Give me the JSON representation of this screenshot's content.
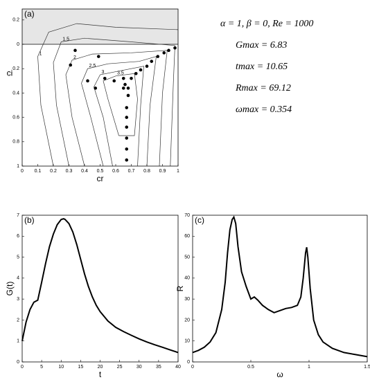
{
  "chart_data": [
    {
      "type": "contour",
      "title": "(a)",
      "xlabel": "cr",
      "ylabel": "ci",
      "xlim": [
        0,
        1
      ],
      "xticks": [
        0,
        0.1,
        0.2,
        0.3,
        0.4,
        0.5,
        0.6,
        0.7,
        0.8,
        0.9,
        1
      ],
      "ylim": [
        -1,
        0.29
      ],
      "yticks": [
        {
          "value": 0.2,
          "label": "0.2"
        },
        0,
        {
          "value": -0.2,
          "label": "0.2"
        },
        {
          "value": -0.4,
          "label": "0.4"
        },
        {
          "value": -0.6,
          "label": "0.6"
        },
        {
          "value": -0.8,
          "label": "0.8"
        },
        {
          "value": -1,
          "label": "1"
        }
      ],
      "x": [
        0.34,
        0.49,
        0.31,
        0.42,
        0.47,
        0.53,
        0.59,
        0.65,
        0.7,
        0.73,
        0.76,
        0.8,
        0.83,
        0.87,
        0.91,
        0.94,
        0.98,
        0.66,
        0.68,
        0.65,
        0.68,
        0.67,
        0.67,
        0.67,
        0.67,
        0.67,
        0.67
      ],
      "y": [
        -0.05,
        -0.1,
        -0.17,
        -0.3,
        -0.36,
        -0.28,
        -0.3,
        -0.28,
        -0.28,
        -0.24,
        -0.21,
        -0.18,
        -0.14,
        -0.1,
        -0.07,
        -0.05,
        -0.03,
        -0.33,
        -0.36,
        -0.36,
        -0.42,
        -0.52,
        -0.6,
        -0.68,
        -0.77,
        -0.86,
        -0.95
      ],
      "color": "#000000",
      "contours": [
        {
          "level": 1,
          "x": [
            0.2,
            0.12,
            0.1,
            0.17,
            0.35,
            0.6,
            1.0
          ],
          "y": [
            -1,
            -0.5,
            -0.1,
            0.1,
            0.17,
            0.14,
            0.12
          ]
        },
        {
          "level": 1.5,
          "x": [
            0.3,
            0.22,
            0.2,
            0.25,
            0.4,
            0.7,
            0.98,
            0.97,
            0.95
          ],
          "y": [
            -1,
            -0.5,
            -0.15,
            0.02,
            0.05,
            0.02,
            -0.01,
            -0.3,
            -1
          ]
        },
        {
          "level": 2,
          "x": [
            0.4,
            0.32,
            0.28,
            0.32,
            0.45,
            0.7,
            0.93,
            0.9,
            0.88
          ],
          "y": [
            -1,
            -0.6,
            -0.25,
            -0.13,
            -0.08,
            -0.07,
            -0.05,
            -0.4,
            -1
          ]
        },
        {
          "level": 2.5,
          "x": [
            0.52,
            0.44,
            0.38,
            0.42,
            0.55,
            0.75,
            0.86,
            0.82,
            0.8
          ],
          "y": [
            -1,
            -0.6,
            -0.32,
            -0.2,
            -0.16,
            -0.14,
            -0.1,
            -0.5,
            -1
          ]
        },
        {
          "level": 3,
          "x": [
            0.58,
            0.52,
            0.46,
            0.5,
            0.62,
            0.78,
            0.76,
            0.74
          ],
          "y": [
            -1,
            -0.6,
            -0.35,
            -0.25,
            -0.22,
            -0.18,
            -0.5,
            -1
          ]
        },
        {
          "level": 3.5,
          "x": [
            0.62,
            0.55,
            0.52,
            0.6,
            0.72,
            0.74,
            0.72,
            0.62
          ],
          "y": [
            -0.75,
            -0.45,
            -0.3,
            -0.26,
            -0.24,
            -0.45,
            -0.75,
            -0.75
          ]
        }
      ],
      "annotations": [
        "α = 1, β = 0, Re = 1000",
        "Gmax = 6.83",
        "tmax = 10.65",
        "Rmax = 69.12",
        "ωmax = 0.354"
      ]
    },
    {
      "type": "line",
      "title": "(b)",
      "xlabel": "t",
      "ylabel": "G(t)",
      "xlim": [
        0,
        40
      ],
      "xticks": [
        0,
        5,
        10,
        15,
        20,
        25,
        30,
        35,
        40
      ],
      "ylim": [
        0,
        7
      ],
      "yticks": [
        0,
        1,
        2,
        3,
        4,
        5,
        6,
        7
      ],
      "color": "#000000",
      "x": [
        0,
        1,
        2,
        3,
        4,
        5,
        6,
        7,
        8,
        9,
        10,
        10.65,
        11,
        12,
        13,
        14,
        15,
        16,
        17,
        18,
        19,
        20,
        22,
        24,
        26,
        28,
        30,
        32,
        34,
        36,
        38,
        40
      ],
      "values": [
        1,
        1.9,
        2.5,
        2.85,
        2.95,
        3.8,
        4.7,
        5.5,
        6.1,
        6.55,
        6.8,
        6.83,
        6.8,
        6.6,
        6.2,
        5.6,
        4.9,
        4.2,
        3.6,
        3.1,
        2.7,
        2.4,
        1.95,
        1.65,
        1.45,
        1.27,
        1.1,
        0.95,
        0.82,
        0.7,
        0.57,
        0.45
      ]
    },
    {
      "type": "line",
      "title": "(c)",
      "xlabel": "ω",
      "ylabel": "R",
      "xlim": [
        0,
        1.5
      ],
      "xticks": [
        0,
        0.5,
        1,
        1.5
      ],
      "ylim": [
        0,
        70
      ],
      "yticks": [
        0,
        10,
        20,
        30,
        40,
        50,
        60,
        70
      ],
      "color": "#000000",
      "x": [
        0,
        0.05,
        0.1,
        0.15,
        0.2,
        0.25,
        0.28,
        0.3,
        0.32,
        0.34,
        0.354,
        0.37,
        0.39,
        0.42,
        0.46,
        0.5,
        0.53,
        0.56,
        0.6,
        0.65,
        0.7,
        0.75,
        0.8,
        0.85,
        0.9,
        0.93,
        0.95,
        0.97,
        0.98,
        0.99,
        1.01,
        1.04,
        1.08,
        1.12,
        1.2,
        1.3,
        1.4,
        1.5
      ],
      "values": [
        4.5,
        5.5,
        7,
        9.5,
        14,
        25,
        38,
        52,
        63,
        68,
        69.12,
        66,
        55,
        43,
        36,
        30,
        31,
        29.5,
        27,
        25,
        23.5,
        24.5,
        25.5,
        26,
        27,
        31,
        40,
        52,
        54.7,
        50,
        35,
        20,
        13,
        9.5,
        6.5,
        4.5,
        3.5,
        2.5
      ]
    }
  ]
}
